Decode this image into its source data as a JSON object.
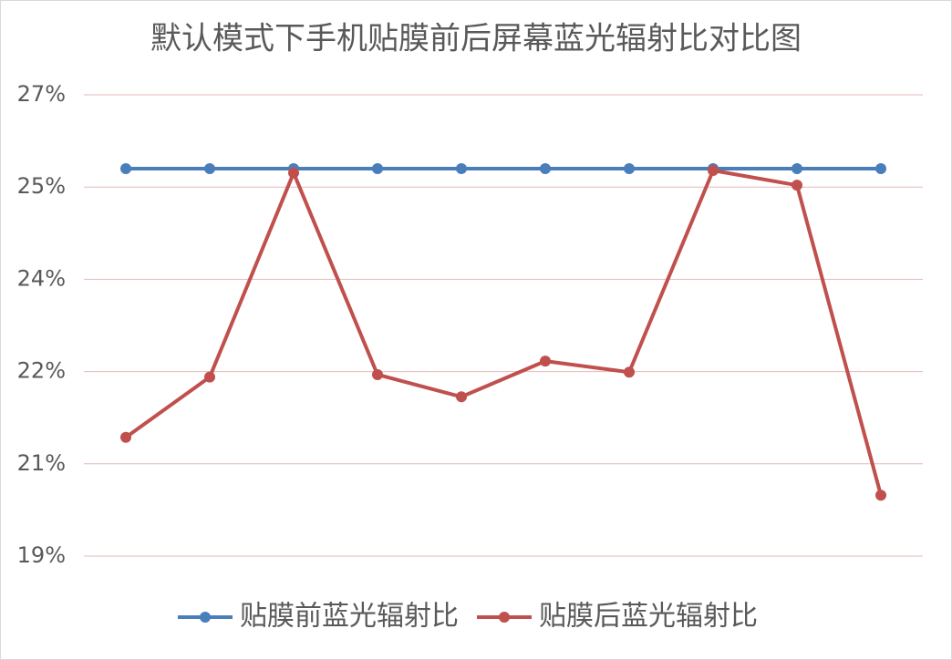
{
  "chart_data": {
    "type": "line",
    "title": "默认模式下手机贴膜前后屏幕蓝光辐射比对比图",
    "categories": [
      null,
      null,
      null,
      null,
      null,
      null,
      null,
      null,
      null,
      null
    ],
    "series": [
      {
        "name": "贴膜前蓝光辐射比",
        "color": "#4a7ebb",
        "values": [
          25.3,
          25.3,
          25.3,
          25.3,
          25.3,
          25.3,
          25.3,
          25.3,
          25.3,
          25.3
        ]
      },
      {
        "name": "贴膜后蓝光辐射比",
        "color": "#c0504d",
        "values": [
          20.93,
          21.91,
          25.23,
          21.95,
          21.59,
          22.17,
          21.99,
          25.27,
          25.03,
          19.99
        ]
      }
    ],
    "ylim": [
      19,
      26.5
    ],
    "yticks": [
      {
        "value": 19,
        "label": "19%"
      },
      {
        "value": 20.5,
        "label": "21%"
      },
      {
        "value": 22,
        "label": "22%"
      },
      {
        "value": 23.5,
        "label": "24%"
      },
      {
        "value": 25,
        "label": "25%"
      },
      {
        "value": 26.5,
        "label": "27%"
      }
    ],
    "grid": true,
    "legend": "bottom"
  }
}
